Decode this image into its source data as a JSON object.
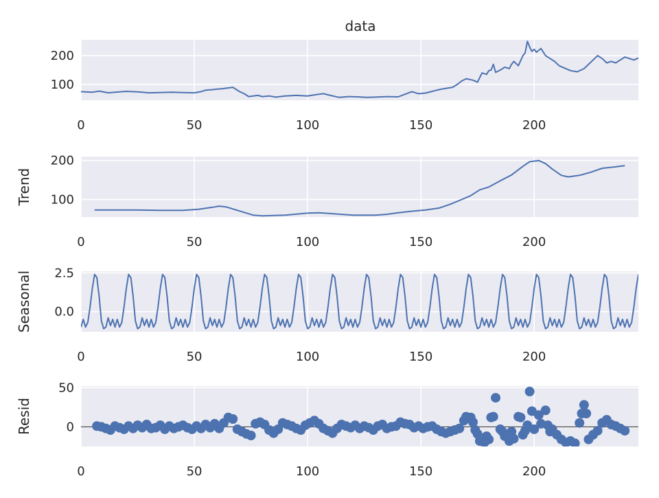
{
  "figure": {
    "title": "data"
  },
  "chart_data": [
    {
      "type": "line",
      "panel": "observed",
      "title": "data",
      "ylabel": "",
      "xlim": [
        0,
        246
      ],
      "ylim": [
        45,
        255
      ],
      "xticks": [
        0,
        50,
        100,
        150,
        200
      ],
      "yticks": [
        100,
        200
      ],
      "grid": true,
      "series": [
        {
          "name": "",
          "color": "#4c72b0",
          "points": [
            [
              0,
              75
            ],
            [
              5,
              73
            ],
            [
              8,
              77
            ],
            [
              12,
              71
            ],
            [
              15,
              73
            ],
            [
              20,
              76
            ],
            [
              25,
              74
            ],
            [
              30,
              71
            ],
            [
              35,
              72
            ],
            [
              40,
              73
            ],
            [
              45,
              72
            ],
            [
              50,
              71
            ],
            [
              53,
              75
            ],
            [
              55,
              80
            ],
            [
              58,
              82
            ],
            [
              60,
              84
            ],
            [
              62,
              85
            ],
            [
              65,
              88
            ],
            [
              67,
              90
            ],
            [
              70,
              75
            ],
            [
              72,
              68
            ],
            [
              74,
              58
            ],
            [
              78,
              62
            ],
            [
              80,
              58
            ],
            [
              83,
              60
            ],
            [
              86,
              56
            ],
            [
              90,
              60
            ],
            [
              95,
              62
            ],
            [
              100,
              60
            ],
            [
              104,
              65
            ],
            [
              107,
              68
            ],
            [
              110,
              62
            ],
            [
              114,
              55
            ],
            [
              118,
              58
            ],
            [
              122,
              57
            ],
            [
              126,
              55
            ],
            [
              130,
              56
            ],
            [
              135,
              58
            ],
            [
              140,
              57
            ],
            [
              143,
              66
            ],
            [
              146,
              75
            ],
            [
              149,
              68
            ],
            [
              152,
              70
            ],
            [
              155,
              76
            ],
            [
              158,
              82
            ],
            [
              160,
              85
            ],
            [
              164,
              90
            ],
            [
              166,
              100
            ],
            [
              168,
              112
            ],
            [
              170,
              120
            ],
            [
              173,
              115
            ],
            [
              175,
              108
            ],
            [
              177,
              140
            ],
            [
              179,
              135
            ],
            [
              180,
              148
            ],
            [
              181,
              150
            ],
            [
              182,
              170
            ],
            [
              183,
              142
            ],
            [
              185,
              150
            ],
            [
              187,
              160
            ],
            [
              189,
              155
            ],
            [
              190,
              170
            ],
            [
              191,
              180
            ],
            [
              193,
              165
            ],
            [
              195,
              200
            ],
            [
              196,
              210
            ],
            [
              197,
              250
            ],
            [
              198,
              230
            ],
            [
              199,
              215
            ],
            [
              200,
              222
            ],
            [
              201,
              212
            ],
            [
              203,
              225
            ],
            [
              205,
              200
            ],
            [
              207,
              190
            ],
            [
              209,
              180
            ],
            [
              211,
              165
            ],
            [
              213,
              158
            ],
            [
              216,
              148
            ],
            [
              219,
              144
            ],
            [
              222,
              155
            ],
            [
              224,
              170
            ],
            [
              226,
              185
            ],
            [
              228,
              200
            ],
            [
              230,
              190
            ],
            [
              232,
              175
            ],
            [
              234,
              180
            ],
            [
              236,
              175
            ],
            [
              238,
              185
            ],
            [
              240,
              195
            ],
            [
              242,
              190
            ],
            [
              244,
              185
            ],
            [
              246,
              192
            ]
          ]
        }
      ]
    },
    {
      "type": "line",
      "panel": "trend",
      "ylabel": "Trend",
      "xlim": [
        0,
        246
      ],
      "ylim": [
        55,
        210
      ],
      "xticks": [
        0,
        50,
        100,
        150,
        200
      ],
      "yticks": [
        100,
        200
      ],
      "grid": true,
      "series": [
        {
          "name": "",
          "color": "#4c72b0",
          "points": [
            [
              6,
              73
            ],
            [
              15,
              73
            ],
            [
              25,
              73
            ],
            [
              35,
              72
            ],
            [
              45,
              72
            ],
            [
              52,
              75
            ],
            [
              58,
              80
            ],
            [
              61,
              83
            ],
            [
              64,
              81
            ],
            [
              68,
              74
            ],
            [
              72,
              67
            ],
            [
              76,
              60
            ],
            [
              80,
              58
            ],
            [
              90,
              60
            ],
            [
              100,
              65
            ],
            [
              105,
              66
            ],
            [
              110,
              64
            ],
            [
              120,
              60
            ],
            [
              130,
              60
            ],
            [
              135,
              62
            ],
            [
              140,
              66
            ],
            [
              146,
              70
            ],
            [
              152,
              73
            ],
            [
              158,
              78
            ],
            [
              163,
              88
            ],
            [
              168,
              100
            ],
            [
              172,
              110
            ],
            [
              176,
              125
            ],
            [
              180,
              132
            ],
            [
              185,
              148
            ],
            [
              190,
              163
            ],
            [
              195,
              185
            ],
            [
              198,
              197
            ],
            [
              202,
              200
            ],
            [
              205,
              192
            ],
            [
              208,
              178
            ],
            [
              212,
              162
            ],
            [
              215,
              158
            ],
            [
              220,
              162
            ],
            [
              225,
              170
            ],
            [
              230,
              180
            ],
            [
              235,
              183
            ],
            [
              240,
              187
            ]
          ]
        }
      ]
    },
    {
      "type": "line",
      "panel": "seasonal",
      "ylabel": "Seasonal",
      "period": 15,
      "xlim": [
        0,
        246
      ],
      "ylim": [
        -1.3,
        2.6
      ],
      "xticks": [
        0,
        50,
        100,
        150,
        200
      ],
      "yticks": [
        0.0,
        2.5
      ],
      "ytick_labels": [
        "0.0",
        "2.5"
      ],
      "grid": true,
      "one_period": [
        -1.0,
        -0.5,
        -1.0,
        -0.7,
        0.3,
        1.5,
        2.4,
        2.2,
        1.0,
        -0.6,
        -1.1,
        -1.0,
        -0.4,
        -0.9,
        -0.5
      ],
      "series": [
        {
          "name": "",
          "color": "#4c72b0",
          "x_start": 0,
          "x_end": 246
        }
      ]
    },
    {
      "type": "scatter",
      "panel": "resid",
      "ylabel": "Resid",
      "xlim": [
        0,
        246
      ],
      "ylim": [
        -25,
        52
      ],
      "xticks": [
        0,
        50,
        100,
        150,
        200
      ],
      "yticks": [
        0,
        50
      ],
      "grid": true,
      "zero_line": true,
      "series": [
        {
          "name": "",
          "color": "#4c72b0",
          "points": [
            [
              7,
              1
            ],
            [
              9,
              0
            ],
            [
              11,
              -2
            ],
            [
              13,
              -4
            ],
            [
              15,
              1
            ],
            [
              17,
              -1
            ],
            [
              19,
              -3
            ],
            [
              21,
              1
            ],
            [
              23,
              -2
            ],
            [
              25,
              2
            ],
            [
              27,
              -1
            ],
            [
              29,
              3
            ],
            [
              31,
              -2
            ],
            [
              33,
              -1
            ],
            [
              35,
              2
            ],
            [
              37,
              -3
            ],
            [
              39,
              1
            ],
            [
              41,
              -2
            ],
            [
              43,
              0
            ],
            [
              45,
              2
            ],
            [
              47,
              -1
            ],
            [
              49,
              -3
            ],
            [
              51,
              1
            ],
            [
              53,
              -2
            ],
            [
              55,
              3
            ],
            [
              57,
              -1
            ],
            [
              59,
              4
            ],
            [
              61,
              -2
            ],
            [
              63,
              5
            ],
            [
              65,
              12
            ],
            [
              67,
              10
            ],
            [
              69,
              -3
            ],
            [
              71,
              -6
            ],
            [
              73,
              -9
            ],
            [
              75,
              -11
            ],
            [
              77,
              4
            ],
            [
              79,
              6
            ],
            [
              81,
              3
            ],
            [
              83,
              -4
            ],
            [
              85,
              -8
            ],
            [
              87,
              -3
            ],
            [
              89,
              5
            ],
            [
              91,
              3
            ],
            [
              93,
              1
            ],
            [
              95,
              -2
            ],
            [
              97,
              -4
            ],
            [
              99,
              2
            ],
            [
              101,
              5
            ],
            [
              103,
              8
            ],
            [
              105,
              4
            ],
            [
              107,
              -2
            ],
            [
              109,
              -5
            ],
            [
              111,
              -8
            ],
            [
              113,
              -2
            ],
            [
              115,
              3
            ],
            [
              117,
              1
            ],
            [
              119,
              -1
            ],
            [
              121,
              2
            ],
            [
              123,
              -2
            ],
            [
              125,
              1
            ],
            [
              127,
              -1
            ],
            [
              129,
              -4
            ],
            [
              131,
              1
            ],
            [
              133,
              3
            ],
            [
              135,
              -2
            ],
            [
              137,
              0
            ],
            [
              139,
              1
            ],
            [
              141,
              6
            ],
            [
              143,
              4
            ],
            [
              145,
              3
            ],
            [
              147,
              -1
            ],
            [
              149,
              1
            ],
            [
              151,
              -2
            ],
            [
              153,
              0
            ],
            [
              155,
              1
            ],
            [
              157,
              -3
            ],
            [
              159,
              -6
            ],
            [
              161,
              -8
            ],
            [
              163,
              -6
            ],
            [
              165,
              -4
            ],
            [
              167,
              -2
            ],
            [
              169,
              8
            ],
            [
              170,
              13
            ],
            [
              172,
              12
            ],
            [
              173,
              6
            ],
            [
              174,
              -4
            ],
            [
              175,
              -9
            ],
            [
              176,
              -18
            ],
            [
              178,
              -20
            ],
            [
              179,
              -12
            ],
            [
              180,
              -16
            ],
            [
              181,
              12
            ],
            [
              182,
              13
            ],
            [
              183,
              37
            ],
            [
              185,
              -3
            ],
            [
              186,
              -6
            ],
            [
              187,
              -12
            ],
            [
              189,
              -18
            ],
            [
              190,
              -6
            ],
            [
              191,
              -15
            ],
            [
              193,
              13
            ],
            [
              194,
              12
            ],
            [
              195,
              -10
            ],
            [
              196,
              -5
            ],
            [
              197,
              2
            ],
            [
              198,
              45
            ],
            [
              199,
              20
            ],
            [
              200,
              -3
            ],
            [
              202,
              15
            ],
            [
              203,
              4
            ],
            [
              205,
              21
            ],
            [
              206,
              2
            ],
            [
              207,
              -6
            ],
            [
              208,
              -3
            ],
            [
              210,
              -10
            ],
            [
              212,
              -16
            ],
            [
              214,
              -20
            ],
            [
              216,
              -18
            ],
            [
              218,
              -21
            ],
            [
              220,
              5
            ],
            [
              221,
              17
            ],
            [
              222,
              28
            ],
            [
              223,
              17
            ],
            [
              224,
              -16
            ],
            [
              226,
              -10
            ],
            [
              228,
              -5
            ],
            [
              230,
              5
            ],
            [
              232,
              9
            ],
            [
              234,
              3
            ],
            [
              236,
              1
            ],
            [
              238,
              -2
            ],
            [
              240,
              -5
            ]
          ]
        }
      ]
    }
  ]
}
